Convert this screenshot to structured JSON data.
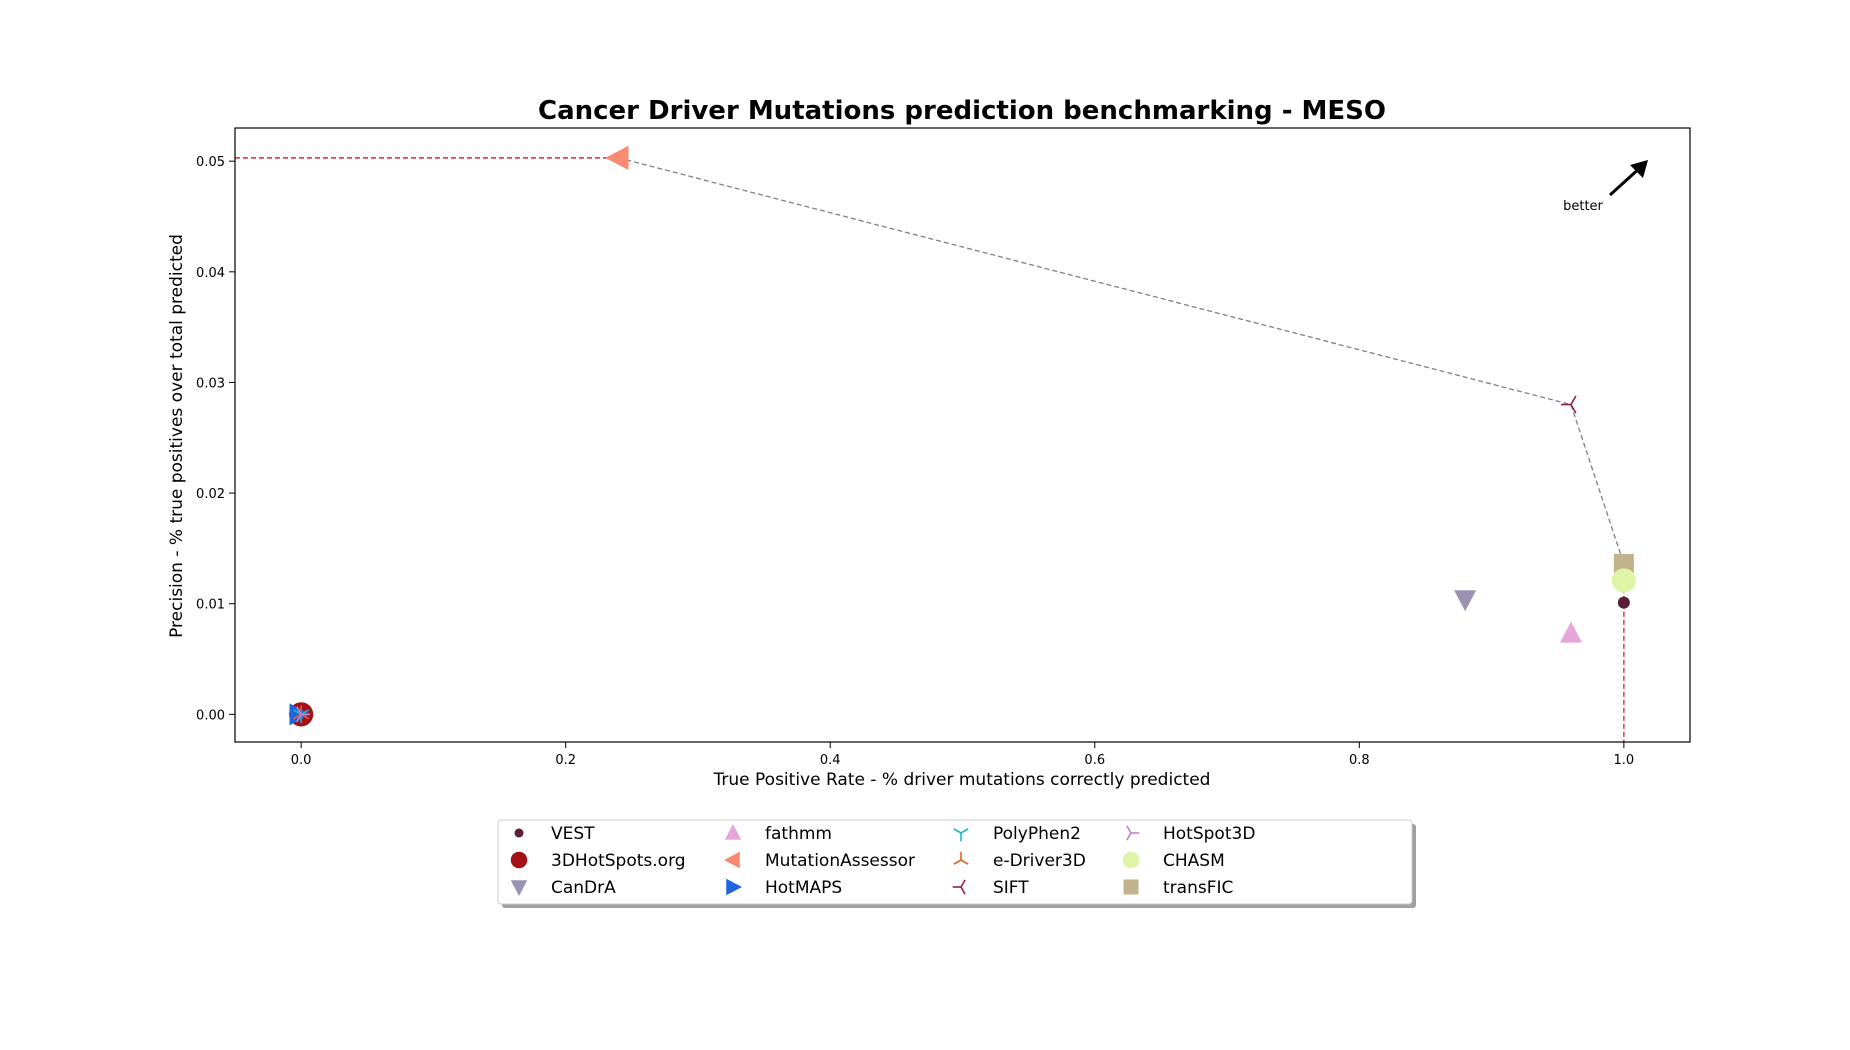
{
  "chart_data": {
    "type": "scatter",
    "title": "Cancer Driver Mutations prediction benchmarking - MESO",
    "xlabel": "True Positive Rate - % driver mutations correctly predicted",
    "ylabel": "Precision - % true positives over total predicted",
    "xlim": [
      -0.05,
      1.05
    ],
    "ylim": [
      -0.0025,
      0.053
    ],
    "xticks": [
      "0.0",
      "0.2",
      "0.4",
      "0.6",
      "0.8",
      "1.0"
    ],
    "yticks": [
      "0.00",
      "0.01",
      "0.02",
      "0.03",
      "0.04",
      "0.05"
    ],
    "grid": false,
    "legend_position": "bottom-center",
    "annotation": "better",
    "series": [
      {
        "name": "VEST",
        "x": 1.0,
        "y": 0.0101,
        "marker": "circle-small",
        "color": "#5a1e3a"
      },
      {
        "name": "fathmm",
        "x": 0.96,
        "y": 0.0073,
        "marker": "triangle-up",
        "color": "#e6a7d8"
      },
      {
        "name": "PolyPhen2",
        "x": 0.0,
        "y": 0.0,
        "marker": "tri-down",
        "color": "#1fb5c9"
      },
      {
        "name": "SIFT",
        "x": 0.96,
        "y": 0.028,
        "marker": "tri-left",
        "color": "#8b2252"
      },
      {
        "name": "CHASM",
        "x": 1.0,
        "y": 0.0121,
        "marker": "circle",
        "color": "#dff5a6"
      },
      {
        "name": "3DHotSpots.org",
        "x": 0.0,
        "y": 0.0,
        "marker": "circle",
        "color": "#a50f15"
      },
      {
        "name": "MutationAssessor",
        "x": 0.24,
        "y": 0.0503,
        "marker": "triangle-left",
        "color": "#f88a71"
      },
      {
        "name": "e-Driver3D",
        "x": 0.0,
        "y": 0.0,
        "marker": "tri-up",
        "color": "#e0662a"
      },
      {
        "name": "HotSpot3D",
        "x": 0.0,
        "y": 0.0,
        "marker": "tri-right",
        "color": "#c77ed9"
      },
      {
        "name": "transFIC",
        "x": 1.0,
        "y": 0.0136,
        "marker": "square",
        "color": "#c2b28d"
      },
      {
        "name": "CanDrA",
        "x": 0.88,
        "y": 0.0104,
        "marker": "triangle-down",
        "color": "#9992b3"
      },
      {
        "name": "HotMAPS",
        "x": -0.002,
        "y": 0.0,
        "marker": "triangle-right",
        "color": "#1f65e0"
      }
    ],
    "pareto_frontier": [
      [
        -0.05,
        0.0503
      ],
      [
        0.24,
        0.0503
      ],
      [
        0.96,
        0.028
      ],
      [
        1.0,
        0.0136
      ],
      [
        1.0,
        -0.0025
      ]
    ],
    "legend_order": [
      "VEST",
      "3DHotSpots.org",
      "CanDrA",
      "fathmm",
      "MutationAssessor",
      "HotMAPS",
      "PolyPhen2",
      "e-Driver3D",
      "SIFT",
      "HotSpot3D",
      "CHASM",
      "transFIC"
    ]
  }
}
